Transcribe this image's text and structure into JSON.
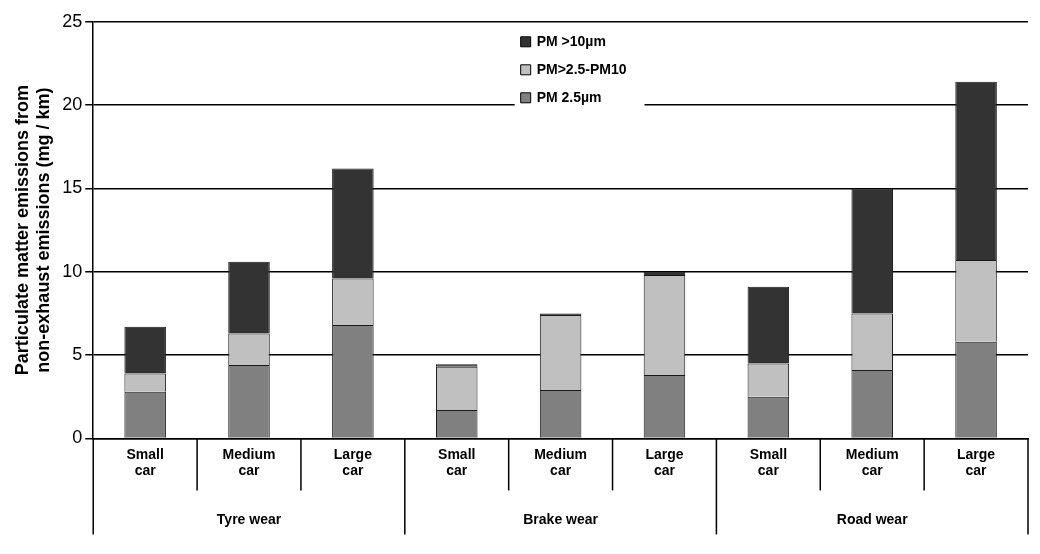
{
  "chart_data": {
    "type": "bar",
    "stacked": true,
    "ylabel": "Particulate matter emissions from non-exhaust emissions (mg / km)",
    "categories": [
      "Small car",
      "Medium car",
      "Large car",
      "Small car",
      "Medium car",
      "Large car",
      "Small car",
      "Medium car",
      "Large car"
    ],
    "series": [
      {
        "name": "PM 2.5µm",
        "color": "#808080",
        "values": [
          2.8,
          4.4,
          6.8,
          1.7,
          2.9,
          3.8,
          2.5,
          4.1,
          5.8
        ]
      },
      {
        "name": "PM>2.5-PM10",
        "color": "#c0c0c0",
        "values": [
          1.1,
          1.9,
          2.8,
          2.6,
          4.5,
          6.0,
          2.0,
          3.4,
          4.9
        ]
      },
      {
        "name": "PM >10µm",
        "color": "#333333",
        "values": [
          2.8,
          4.3,
          6.6,
          0.15,
          0.1,
          0.2,
          4.6,
          7.5,
          10.7
        ]
      }
    ],
    "annotations": [
      "Tyre wear",
      "Brake wear",
      "Road wear"
    ],
    "ylim": [
      0,
      25
    ],
    "yticks": [
      0,
      5,
      10,
      15,
      20,
      25
    ],
    "grid": "y",
    "legend": "top"
  }
}
